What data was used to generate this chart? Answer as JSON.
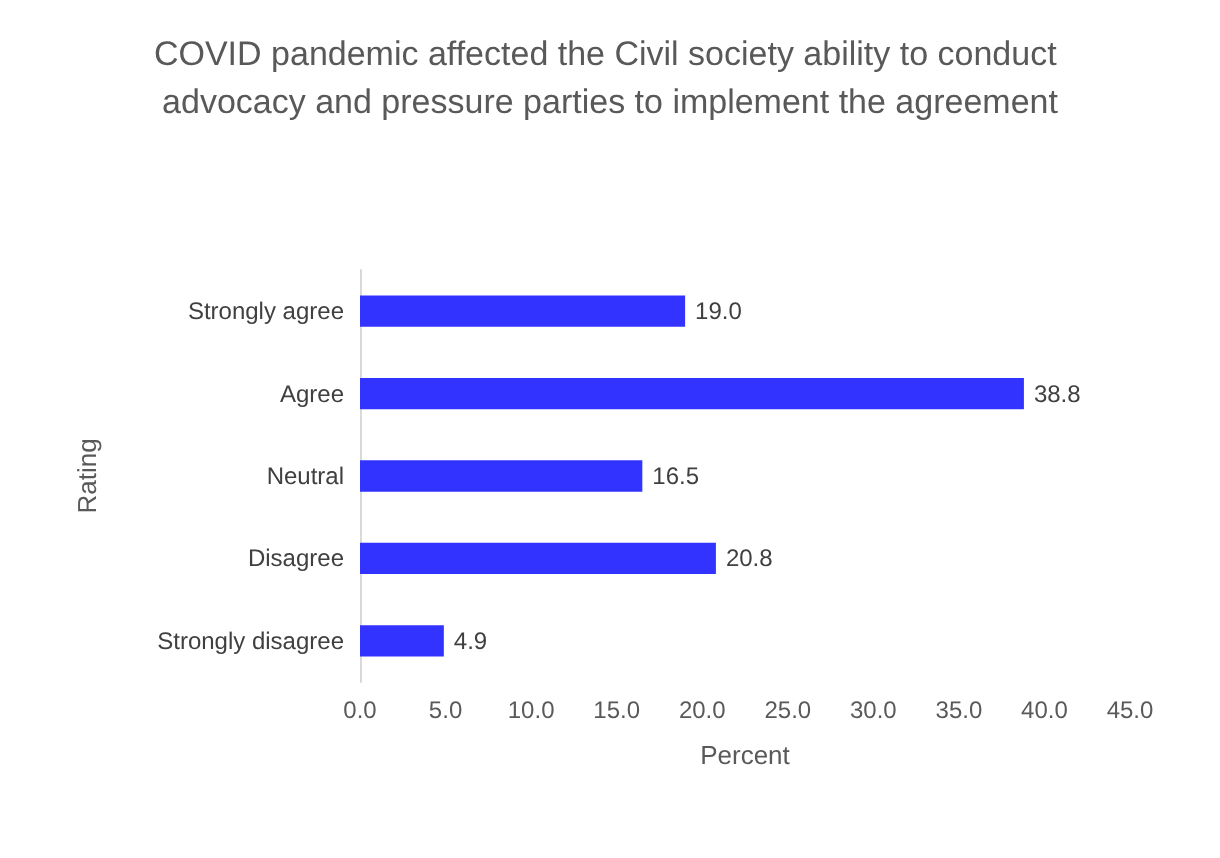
{
  "chart_data": {
    "type": "bar",
    "orientation": "horizontal",
    "title": "COVID pandemic affected the Civil society ability to conduct advocacy and pressure parties to implement the agreement",
    "xlabel": "Percent",
    "ylabel": "Rating",
    "categories": [
      "Strongly agree",
      "Agree",
      "Neutral",
      "Disagree",
      "Strongly disagree"
    ],
    "values": [
      19.0,
      38.8,
      16.5,
      20.8,
      4.9
    ],
    "value_labels": [
      "19.0",
      "38.8",
      "16.5",
      "20.8",
      "4.9"
    ],
    "color": "#3333ff",
    "xlim": [
      0,
      45
    ],
    "xticks": [
      {
        "value": 0,
        "label": "0.0"
      },
      {
        "value": 5,
        "label": "5.0"
      },
      {
        "value": 10,
        "label": "10.0"
      },
      {
        "value": 15,
        "label": "15.0"
      },
      {
        "value": 20,
        "label": "20.0"
      },
      {
        "value": 25,
        "label": "25.0"
      },
      {
        "value": 30,
        "label": "30.0"
      },
      {
        "value": 35,
        "label": "35.0"
      },
      {
        "value": 40,
        "label": "40.0"
      },
      {
        "value": 45,
        "label": "45.0"
      }
    ],
    "grid": false
  }
}
